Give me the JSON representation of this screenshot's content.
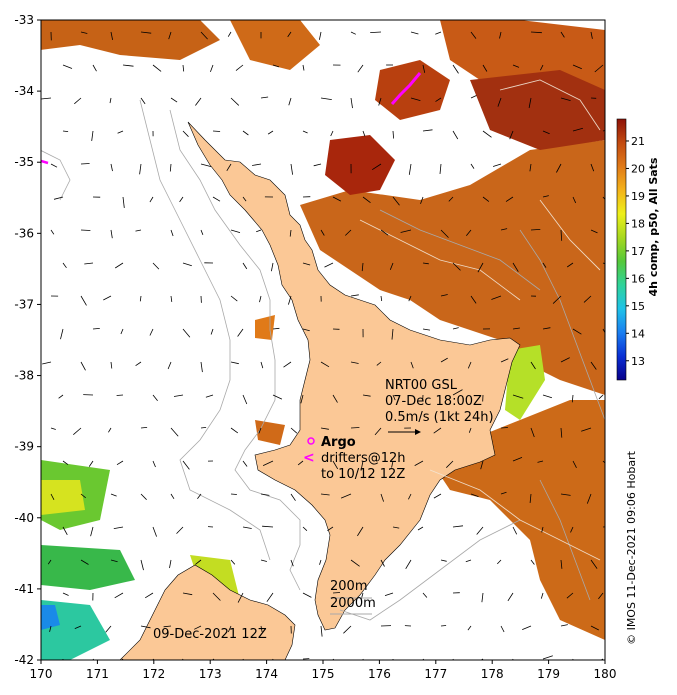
{
  "map": {
    "x_ticks": [
      "170",
      "171",
      "172",
      "173",
      "174",
      "175",
      "176",
      "177",
      "178",
      "179",
      "180"
    ],
    "y_ticks": [
      "-33",
      "-34",
      "-35",
      "-36",
      "-37",
      "-38",
      "-39",
      "-40",
      "-41",
      "-42"
    ],
    "lon_range": [
      170,
      180
    ],
    "lat_range": [
      -42,
      -33
    ]
  },
  "colorbar": {
    "label": "4h comp, p50, All Sats",
    "ticks": [
      "21",
      "20",
      "19",
      "18",
      "17",
      "16",
      "15",
      "14",
      "13"
    ],
    "range": [
      12.3,
      21.8
    ],
    "colors": [
      "#08008a",
      "#0a2fd4",
      "#1a7ef0",
      "#1fc2e8",
      "#2fd39a",
      "#55c83a",
      "#a7d81f",
      "#eef01a",
      "#f4b31a",
      "#e07a18",
      "#c24a10",
      "#8e1208"
    ]
  },
  "annotations": {
    "nrt_line1": "NRT00 GSL",
    "nrt_line2": "07-Dec 18:00Z",
    "nrt_line3": "0.5m/s (1kt 24h)",
    "argo": "Argo",
    "drifters_line1": "drifters@12h",
    "drifters_line2": "to 10/12 12Z",
    "iso200": "200m",
    "iso2000": "2000m",
    "date": "09-Dec-2021 12Z",
    "credit": "© IMOS 11-Dec-2021 09:06 Hobart"
  },
  "colors": {
    "land": "#fbc896",
    "contour": "#a9a9a9",
    "marker": "#ff00ff",
    "sst_hot": "#b0300c",
    "sst_warm": "#d9741a",
    "sst_cool": "#8fd22a"
  }
}
